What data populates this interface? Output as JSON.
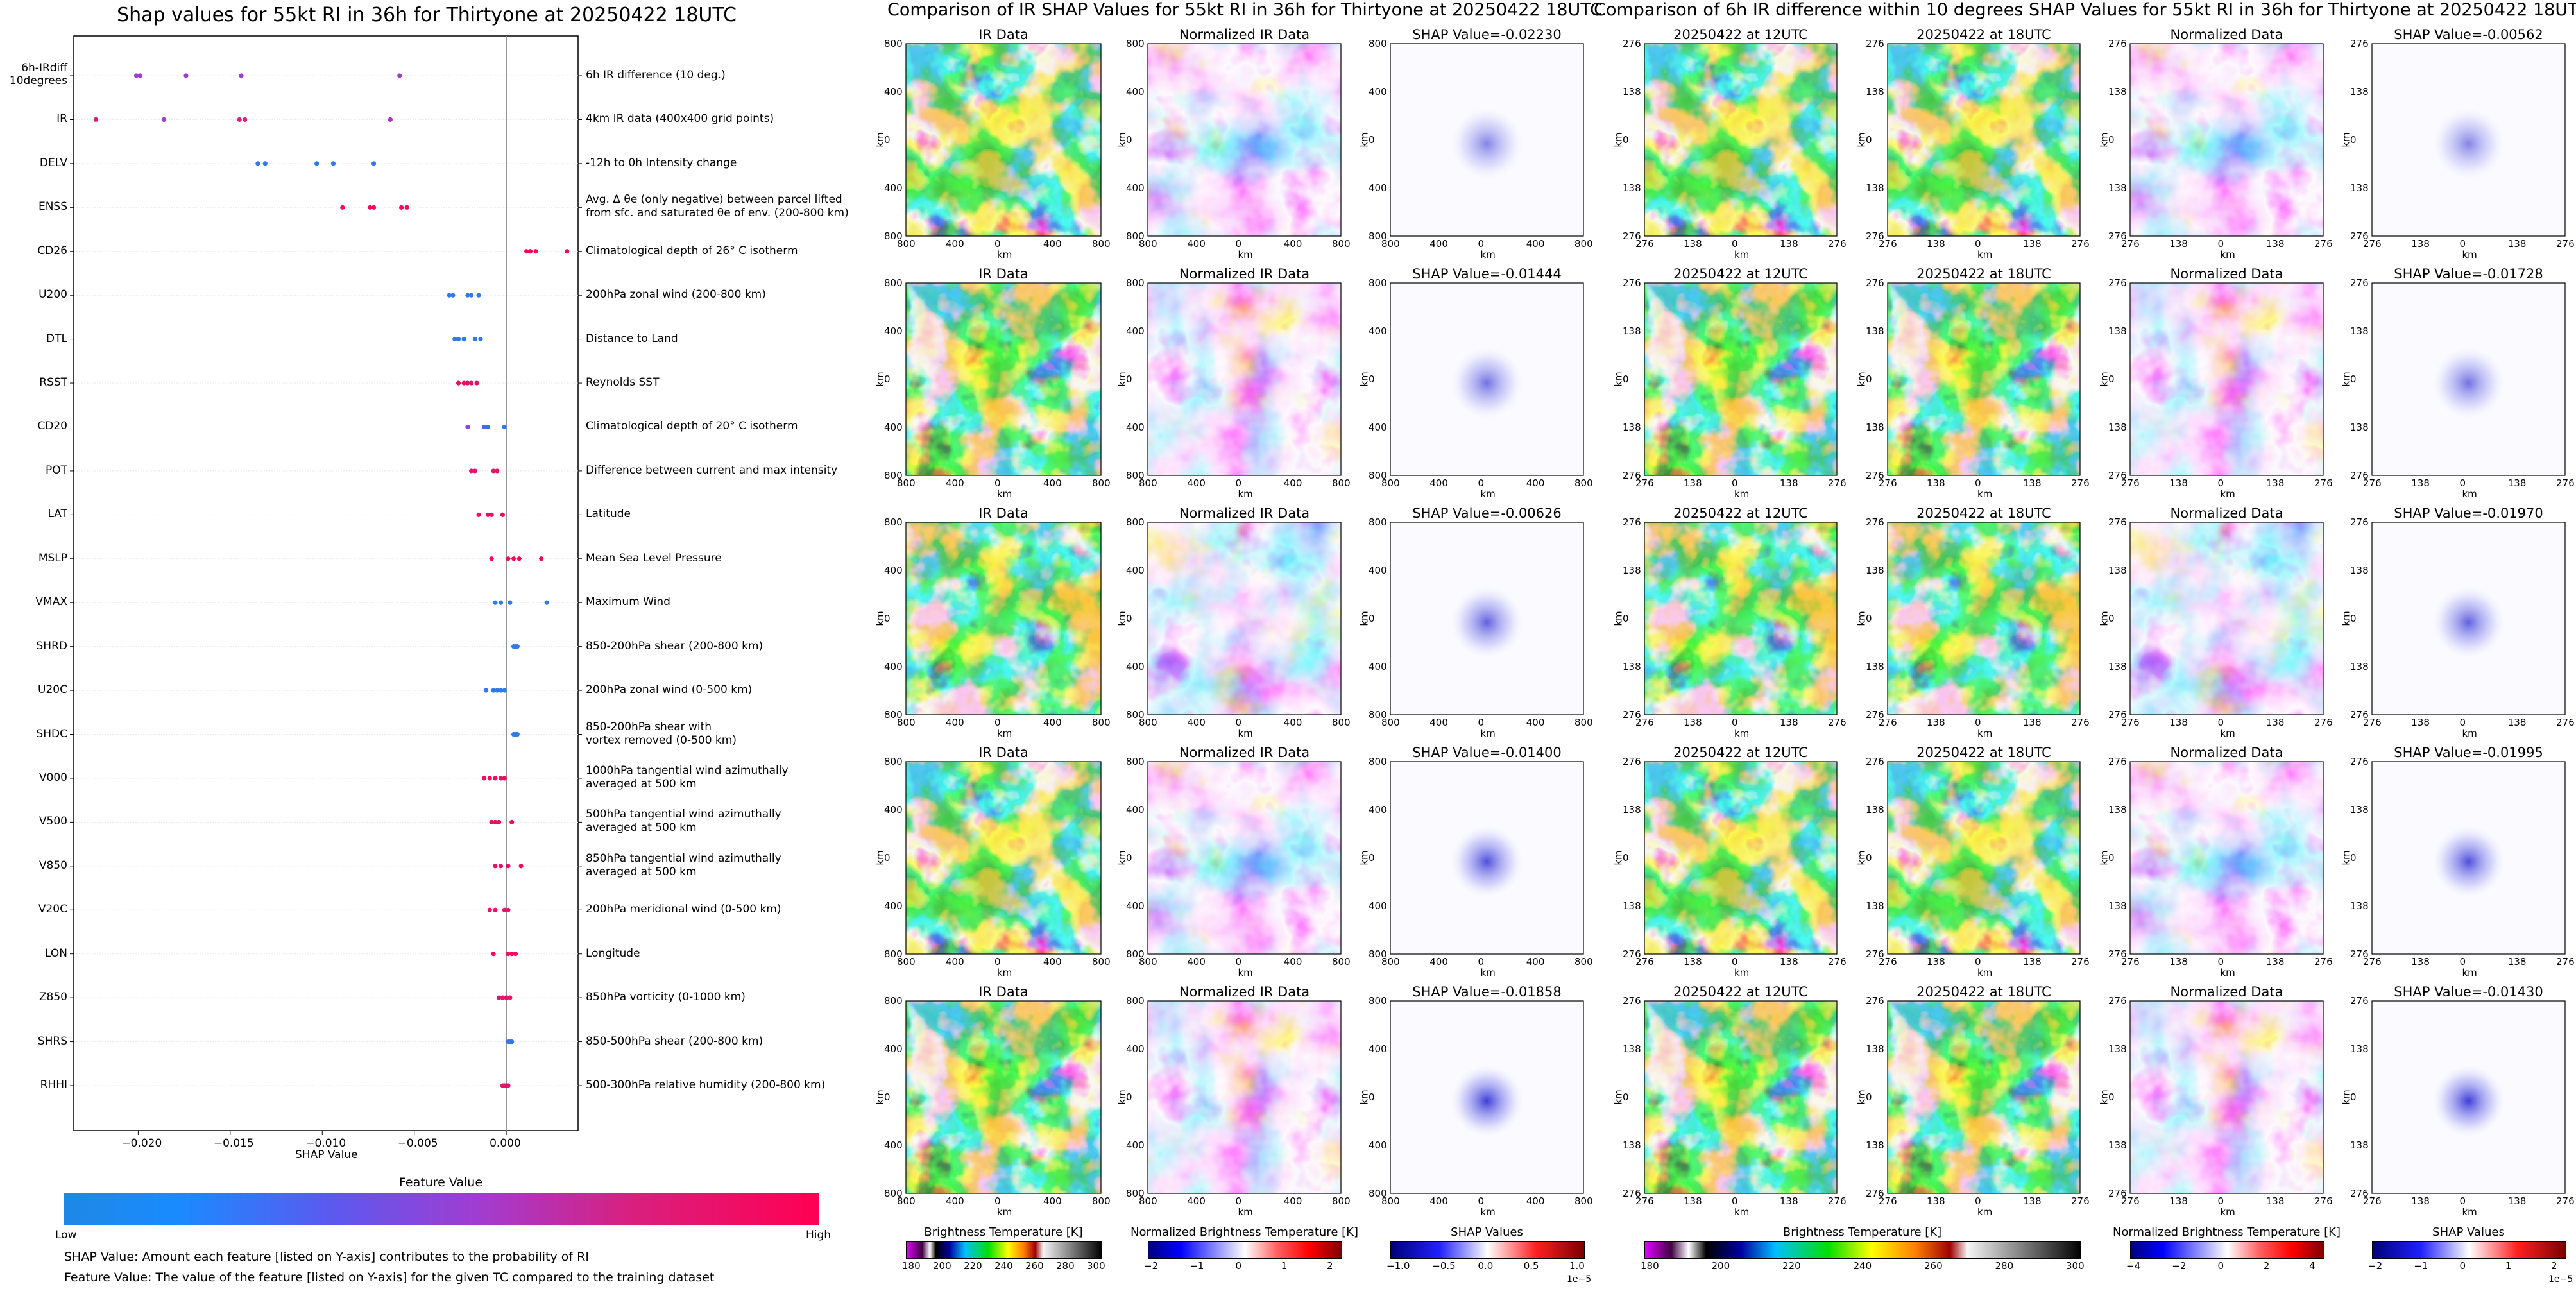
{
  "left_title": "Shap values for 55kt RI in 36h for Thirtyone at 20250422 18UTC",
  "mid_title": "Comparison of IR SHAP Values for 55kt RI in 36h for Thirtyone at 20250422 18UTC",
  "right_title": "Comparison of 6h IR difference within 10 degrees SHAP Values for 55kt RI in 36h for Thirtyone at 20250422 18UTC",
  "feature_value_label": "Feature Value",
  "low_label": "Low",
  "high_label": "High",
  "note1": "SHAP Value: Amount each feature [listed on Y-axis] contributes to the probability of RI",
  "note2": "Feature Value: The value of the feature [listed on Y-axis] for the given TC compared to the training dataset",
  "panel_titles": {
    "ir": "IR Data",
    "nir": "Normalized IR Data",
    "t12": "20250422 at 12UTC",
    "t18": "20250422 at 18UTC",
    "nd": "Normalized Data"
  },
  "shap_ir_titles": [
    "SHAP Value=-0.02230",
    "SHAP Value=-0.01444",
    "SHAP Value=-0.00626",
    "SHAP Value=-0.01400",
    "SHAP Value=-0.01858"
  ],
  "shap_diff_titles": [
    "SHAP Value=-0.00562",
    "SHAP Value=-0.01728",
    "SHAP Value=-0.01970",
    "SHAP Value=-0.01995",
    "SHAP Value=-0.01430"
  ],
  "km": "km",
  "ir_xticks": [
    "800",
    "400",
    "0",
    "400",
    "800"
  ],
  "ir_yticks": [
    "800",
    "400",
    "0",
    "400",
    "800"
  ],
  "diff_xticks": [
    "276",
    "138",
    "0",
    "138",
    "276"
  ],
  "diff_yticks": [
    "276",
    "138",
    "0",
    "138",
    "276"
  ],
  "colorbars": {
    "bt": {
      "label": "Brightness Temperature [K]",
      "ticks": [
        "180",
        "200",
        "220",
        "240",
        "260",
        "280",
        "300"
      ]
    },
    "nbt": {
      "label": "Normalized Brightness Temperature [K]",
      "ticks": [
        "−2",
        "−1",
        "0",
        "1",
        "2"
      ]
    },
    "shap": {
      "label": "SHAP Values",
      "ticks": [
        "−1.0",
        "−0.5",
        "0.0",
        "0.5",
        "1.0"
      ],
      "exp": "1e−5"
    },
    "bt2": {
      "label": "Brightness Temperature [K]",
      "ticks": [
        "180",
        "200",
        "220",
        "240",
        "260",
        "280",
        "300"
      ]
    },
    "nbt2": {
      "label": "Normalized Brightness Temperature [K]",
      "ticks": [
        "−4",
        "−2",
        "0",
        "2",
        "4"
      ]
    },
    "shap2": {
      "label": "SHAP Values",
      "ticks": [
        "−2",
        "−1",
        "0",
        "1",
        "2"
      ],
      "exp": "1e−5"
    }
  },
  "chart_data": {
    "type": "scatter",
    "title": "Shap values for 55kt RI in 36h for Thirtyone at 20250422 18UTC",
    "xlabel": "SHAP Value",
    "xlim": [
      -0.0235,
      0.0039
    ],
    "xticks": [
      "−0.020",
      "−0.015",
      "−0.010",
      "−0.005",
      "0.000"
    ],
    "xtick_values": [
      -0.02,
      -0.015,
      -0.01,
      -0.005,
      0.0
    ],
    "color_low": "#1e88e5",
    "color_high": "#ff0052",
    "features": [
      {
        "name": "6h-IRdiff\n10degrees",
        "desc": "6h IR difference (10 deg.)",
        "points": [
          [
            -0.0201,
            0.55
          ],
          [
            -0.0199,
            0.55
          ],
          [
            -0.0174,
            0.55
          ],
          [
            -0.0144,
            0.55
          ],
          [
            -0.0058,
            0.55
          ]
        ]
      },
      {
        "name": "IR",
        "desc": "4km IR data (400x400 grid points)",
        "points": [
          [
            -0.0223,
            0.8
          ],
          [
            -0.0186,
            0.55
          ],
          [
            -0.0145,
            0.75
          ],
          [
            -0.0142,
            0.7
          ],
          [
            -0.0063,
            0.6
          ]
        ]
      },
      {
        "name": "DELV",
        "desc": "-12h to 0h Intensity change",
        "points": [
          [
            -0.0135,
            0.1
          ],
          [
            -0.0131,
            0.1
          ],
          [
            -0.0103,
            0.1
          ],
          [
            -0.0094,
            0.1
          ],
          [
            -0.0072,
            0.1
          ]
        ]
      },
      {
        "name": "ENSS",
        "desc": "Avg. Δ θe (only negative) between parcel lifted\nfrom sfc. and saturated θe of env. (200-800 km)",
        "points": [
          [
            -0.0089,
            0.92
          ],
          [
            -0.0074,
            0.92
          ],
          [
            -0.0072,
            0.92
          ],
          [
            -0.0057,
            0.92
          ],
          [
            -0.0054,
            0.92
          ]
        ]
      },
      {
        "name": "CD26",
        "desc": "Climatological depth of 26° C isotherm",
        "points": [
          [
            0.0011,
            0.95
          ],
          [
            0.0013,
            0.95
          ],
          [
            0.0016,
            0.95
          ],
          [
            0.0033,
            0.95
          ]
        ]
      },
      {
        "name": "U200",
        "desc": "200hPa zonal wind (200-800 km)",
        "points": [
          [
            -0.0031,
            0.1
          ],
          [
            -0.0029,
            0.1
          ],
          [
            -0.0021,
            0.1
          ],
          [
            -0.0019,
            0.1
          ],
          [
            -0.0015,
            0.1
          ]
        ]
      },
      {
        "name": "DTL",
        "desc": "Distance to Land",
        "points": [
          [
            -0.0028,
            0.1
          ],
          [
            -0.0026,
            0.1
          ],
          [
            -0.0023,
            0.1
          ],
          [
            -0.0017,
            0.1
          ],
          [
            -0.0014,
            0.1
          ]
        ]
      },
      {
        "name": "RSST",
        "desc": "Reynolds SST",
        "points": [
          [
            -0.0026,
            0.9
          ],
          [
            -0.0023,
            0.9
          ],
          [
            -0.0021,
            0.9
          ],
          [
            -0.0019,
            0.9
          ],
          [
            -0.0016,
            0.9
          ]
        ]
      },
      {
        "name": "CD20",
        "desc": "Climatological depth of 20° C isotherm",
        "points": [
          [
            -0.0021,
            0.5
          ],
          [
            -0.0012,
            0.2
          ],
          [
            -0.001,
            0.2
          ],
          [
            -0.0001,
            0.1
          ]
        ]
      },
      {
        "name": "POT",
        "desc": "Difference between current and max intensity",
        "points": [
          [
            -0.0019,
            0.85
          ],
          [
            -0.0017,
            0.85
          ],
          [
            -0.0007,
            0.85
          ],
          [
            -0.0005,
            0.85
          ]
        ]
      },
      {
        "name": "LAT",
        "desc": "Latitude",
        "points": [
          [
            -0.0015,
            0.92
          ],
          [
            -0.001,
            0.92
          ],
          [
            -0.0008,
            0.92
          ],
          [
            -0.0002,
            0.92
          ]
        ]
      },
      {
        "name": "MSLP",
        "desc": "Mean Sea Level Pressure",
        "points": [
          [
            -0.0008,
            0.95
          ],
          [
            0.0001,
            0.95
          ],
          [
            0.0004,
            0.95
          ],
          [
            0.0007,
            0.95
          ],
          [
            0.0019,
            0.95
          ]
        ]
      },
      {
        "name": "VMAX",
        "desc": "Maximum Wind",
        "points": [
          [
            -0.0006,
            0.1
          ],
          [
            -0.0003,
            0.1
          ],
          [
            0.0002,
            0.1
          ],
          [
            0.0022,
            0.1
          ]
        ]
      },
      {
        "name": "SHRD",
        "desc": "850-200hPa shear (200-800 km)",
        "points": [
          [
            0.0004,
            0.1
          ],
          [
            0.0005,
            0.1
          ],
          [
            0.0006,
            0.1
          ]
        ]
      },
      {
        "name": "U20C",
        "desc": "200hPa zonal wind (0-500 km)",
        "points": [
          [
            -0.0011,
            0.1
          ],
          [
            -0.0007,
            0.1
          ],
          [
            -0.0005,
            0.1
          ],
          [
            -0.0003,
            0.1
          ],
          [
            -0.0001,
            0.1
          ]
        ]
      },
      {
        "name": "SHDC",
        "desc": "850-200hPa shear with\nvortex removed (0-500 km)",
        "points": [
          [
            0.0004,
            0.1
          ],
          [
            0.0005,
            0.1
          ],
          [
            0.0006,
            0.1
          ]
        ]
      },
      {
        "name": "V000",
        "desc": "1000hPa tangential wind azimuthally\naveraged at 500 km",
        "points": [
          [
            -0.0012,
            0.9
          ],
          [
            -0.0009,
            0.9
          ],
          [
            -0.0006,
            0.9
          ],
          [
            -0.0003,
            0.9
          ],
          [
            -0.0001,
            0.9
          ]
        ]
      },
      {
        "name": "V500",
        "desc": "500hPa tangential wind azimuthally\naveraged at 500 km",
        "points": [
          [
            -0.0008,
            0.9
          ],
          [
            -0.0006,
            0.9
          ],
          [
            -0.0004,
            0.9
          ],
          [
            0.0003,
            0.9
          ]
        ]
      },
      {
        "name": "V850",
        "desc": "850hPa tangential wind azimuthally\naveraged at 500 km",
        "points": [
          [
            -0.0006,
            0.9
          ],
          [
            -0.0003,
            0.9
          ],
          [
            0.0001,
            0.9
          ],
          [
            0.0008,
            0.9
          ]
        ]
      },
      {
        "name": "V20C",
        "desc": "200hPa meridional wind (0-500 km)",
        "points": [
          [
            -0.0009,
            0.85
          ],
          [
            -0.0006,
            0.85
          ],
          [
            -0.0001,
            0.85
          ],
          [
            0.0001,
            0.85
          ]
        ]
      },
      {
        "name": "LON",
        "desc": "Longitude",
        "points": [
          [
            -0.0007,
            0.9
          ],
          [
            0.0001,
            0.9
          ],
          [
            0.0003,
            0.9
          ],
          [
            0.0005,
            0.9
          ]
        ]
      },
      {
        "name": "Z850",
        "desc": "850hPa vorticity (0-1000 km)",
        "points": [
          [
            -0.0004,
            0.85
          ],
          [
            -0.0002,
            0.85
          ],
          [
            0.0,
            0.85
          ],
          [
            0.0002,
            0.85
          ]
        ]
      },
      {
        "name": "SHRS",
        "desc": "850-500hPa shear (200-800 km)",
        "points": [
          [
            0.0001,
            0.15
          ],
          [
            0.0002,
            0.15
          ],
          [
            0.0003,
            0.15
          ]
        ]
      },
      {
        "name": "RHHI",
        "desc": "500-300hPa relative humidity (200-800 km)",
        "points": [
          [
            -0.0002,
            0.85
          ],
          [
            -0.0001,
            0.85
          ],
          [
            0.0,
            0.85
          ],
          [
            0.0001,
            0.85
          ]
        ]
      }
    ]
  }
}
